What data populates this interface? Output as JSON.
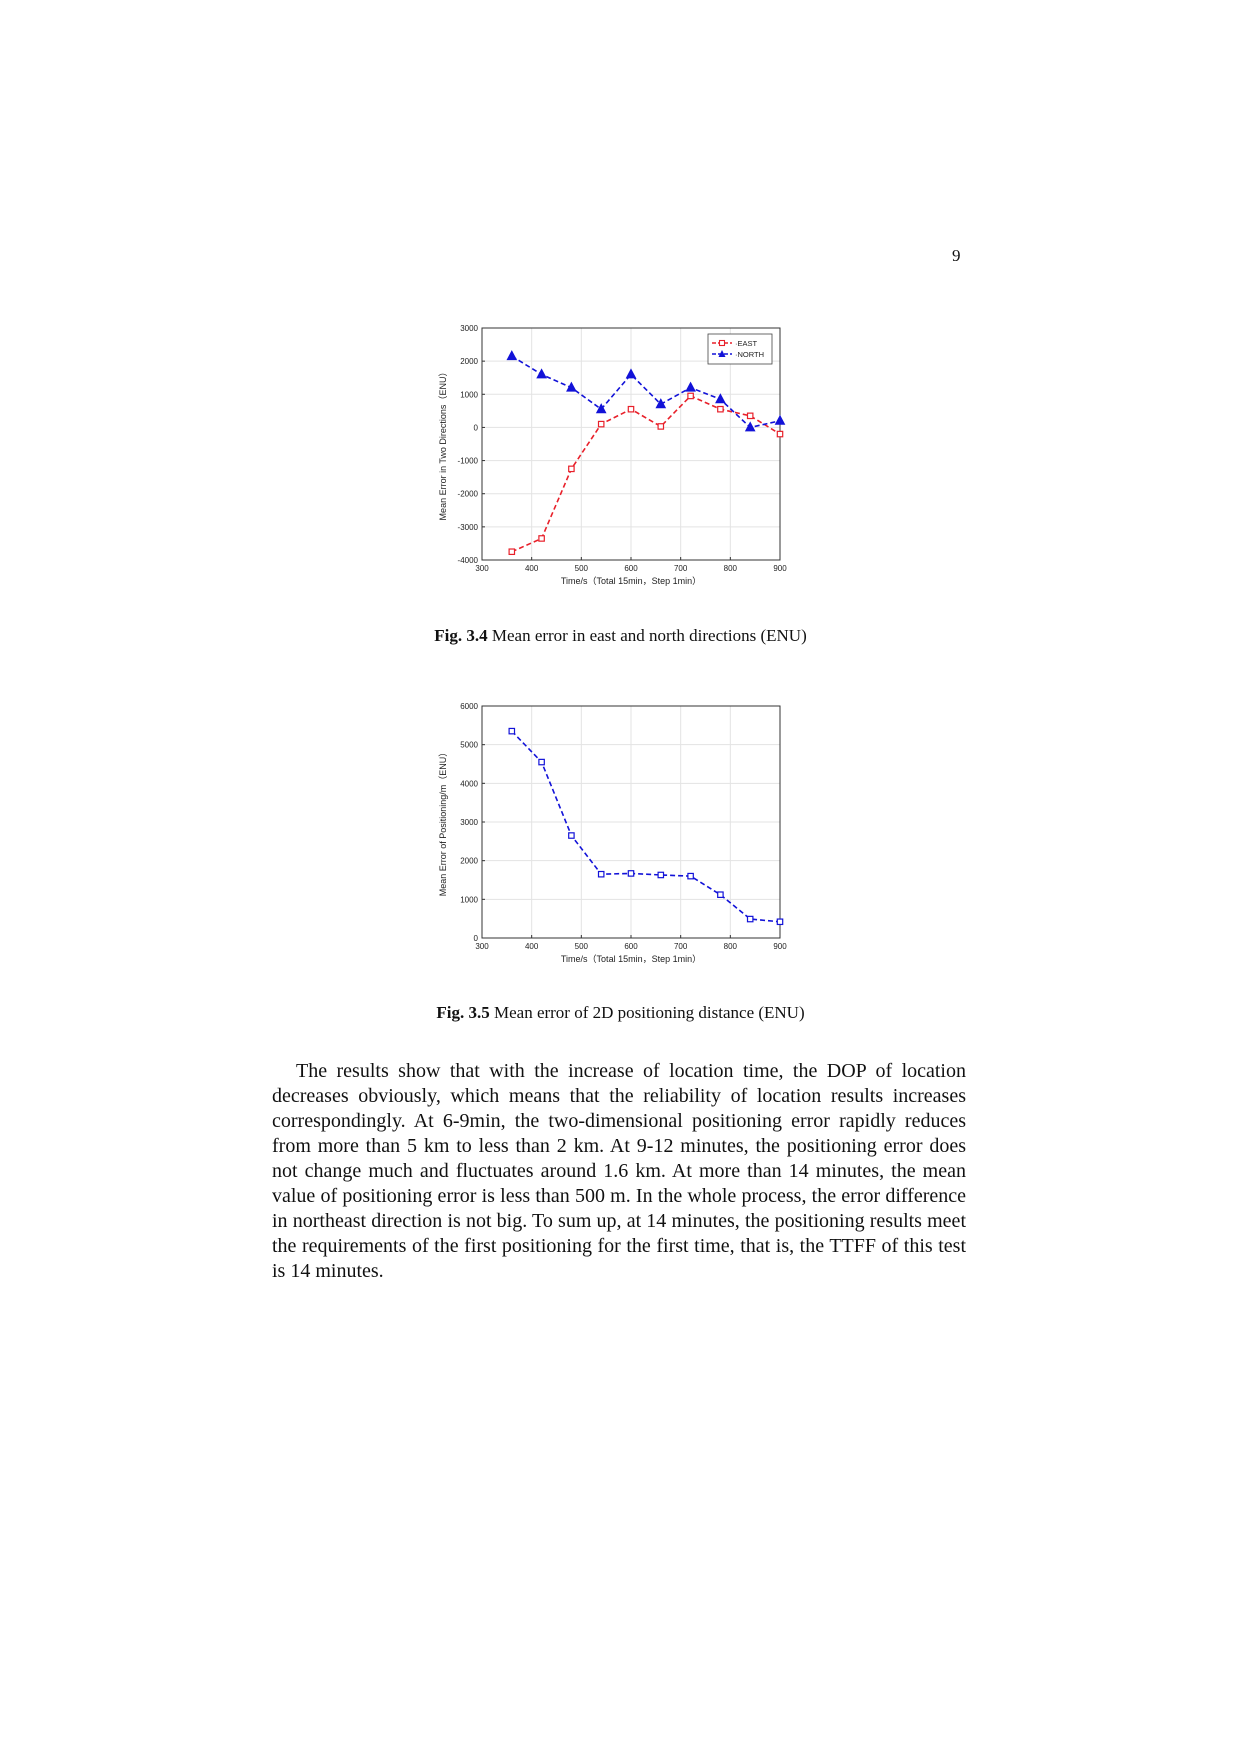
{
  "page": {
    "number": "9"
  },
  "figures": [
    {
      "caption_label": "Fig. 3.4",
      "caption_text": "Mean error in east and north directions (ENU)"
    },
    {
      "caption_label": "Fig. 3.5",
      "caption_text": "Mean error of 2D positioning distance (ENU)"
    }
  ],
  "body": {
    "paragraph": "The results show that with the increase of location time, the DOP of location decreases obviously, which means that the reliability of location results increases correspondingly. At 6-9min, the two-dimensional positioning error rapidly reduces from more than 5 km to less than 2 km. At 9-12 minutes, the positioning error does not change much and fluctuates around 1.6 km. At more than 14 minutes, the mean value of positioning error is less than 500 m. In the whole process, the error difference in northeast direction is not big. To sum up, at 14 minutes, the positioning results meet the requirements of the first positioning for the first time, that is, the TTFF of this test is 14 minutes."
  },
  "chart_data": [
    {
      "type": "line",
      "xlabel": "Time/s（Total 15min，Step 1min）",
      "ylabel": "Mean Error in Two Directions（ENU）",
      "xlim": [
        300,
        900
      ],
      "ylim": [
        -4000,
        3000
      ],
      "xticks": [
        300,
        400,
        500,
        600,
        700,
        800,
        900
      ],
      "yticks": [
        -4000,
        -3000,
        -2000,
        -1000,
        0,
        1000,
        2000,
        3000
      ],
      "grid": true,
      "legend_position": "top-right",
      "series": [
        {
          "name": "EAST",
          "color": "#e8202a",
          "marker": "square",
          "x": [
            360,
            420,
            480,
            540,
            600,
            660,
            720,
            780,
            840,
            900
          ],
          "y": [
            -3750,
            -3350,
            -1250,
            100,
            550,
            30,
            950,
            550,
            350,
            -200
          ]
        },
        {
          "name": "NORTH",
          "color": "#1212d8",
          "marker": "triangle",
          "x": [
            360,
            420,
            480,
            540,
            600,
            660,
            720,
            780,
            840,
            900
          ],
          "y": [
            2150,
            1600,
            1200,
            550,
            1600,
            700,
            1200,
            850,
            0,
            200
          ]
        }
      ]
    },
    {
      "type": "line",
      "xlabel": "Time/s（Total 15min，Step 1min）",
      "ylabel": "Mean Error of Positioning/m（ENU）",
      "xlim": [
        300,
        900
      ],
      "ylim": [
        0,
        6000
      ],
      "xticks": [
        300,
        400,
        500,
        600,
        700,
        800,
        900
      ],
      "yticks": [
        0,
        1000,
        2000,
        3000,
        4000,
        5000,
        6000
      ],
      "grid": true,
      "series": [
        {
          "color": "#1212d8",
          "marker": "square",
          "x": [
            360,
            420,
            480,
            540,
            600,
            660,
            720,
            780,
            840,
            900
          ],
          "y": [
            5350,
            4550,
            2650,
            1650,
            1670,
            1630,
            1600,
            1120,
            490,
            420
          ]
        }
      ]
    }
  ]
}
